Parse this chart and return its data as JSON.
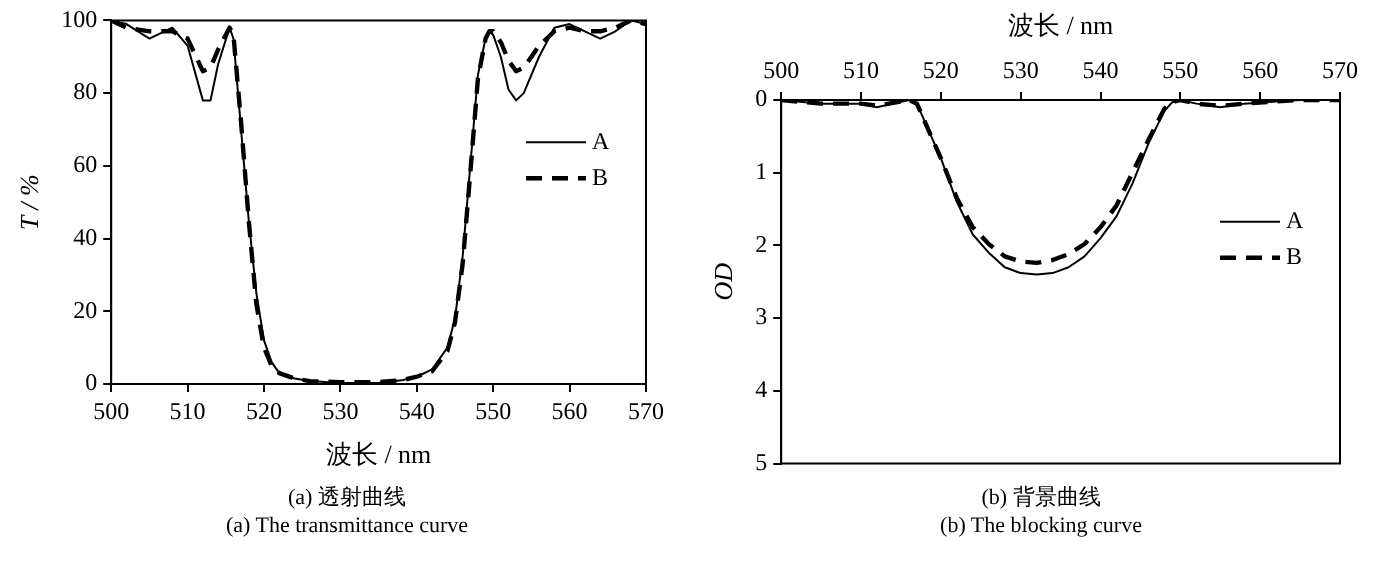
{
  "chart_data": [
    {
      "type": "line",
      "xlabel": "波长 / nm",
      "ylabel": "T / %",
      "xlim": [
        500,
        570
      ],
      "xticks": [
        500,
        510,
        520,
        530,
        540,
        550,
        560,
        570
      ],
      "ylim": [
        0,
        100
      ],
      "yticks": [
        0,
        20,
        40,
        60,
        80,
        100
      ],
      "grid": false,
      "legend": "right",
      "marker": "none",
      "annotations": [
        "(a)  透射曲线",
        "(a) The transmittance curve"
      ],
      "x": [
        500,
        502,
        505,
        508,
        510,
        512,
        513,
        514,
        515.5,
        516,
        517,
        518,
        519,
        520,
        521,
        522,
        524,
        526,
        530,
        535,
        538,
        540,
        542,
        544,
        545,
        546,
        547,
        548,
        549,
        549.5,
        550,
        551,
        552,
        553,
        554,
        556,
        558,
        560,
        562,
        564,
        566,
        568,
        570
      ],
      "series": [
        {
          "name": "A",
          "color": "#000000",
          "line_style": "solid",
          "values": [
            100,
            99,
            95,
            98,
            93,
            78,
            78,
            88,
            98,
            95,
            70,
            45,
            25,
            12,
            6,
            3,
            1.5,
            0.8,
            0.3,
            0.3,
            1,
            2,
            4,
            10,
            18,
            35,
            60,
            85,
            95,
            97,
            96,
            90,
            81,
            78,
            80,
            90,
            98,
            99,
            97,
            95,
            97,
            100,
            99
          ]
        },
        {
          "name": "B",
          "color": "#000000",
          "line_style": "dashed",
          "values": [
            100,
            98,
            97,
            97,
            95,
            86,
            87,
            92,
            98,
            96,
            72,
            45,
            22,
            10,
            5,
            3,
            1.5,
            0.8,
            0.5,
            0.5,
            1,
            2,
            3.5,
            9,
            17,
            33,
            58,
            84,
            95,
            97,
            97,
            94,
            89,
            86,
            87,
            93,
            97,
            98,
            97,
            97,
            98,
            100,
            99
          ]
        }
      ]
    },
    {
      "type": "line",
      "xlabel": "波长 / nm",
      "ylabel": "OD",
      "xlim": [
        500,
        570
      ],
      "xticks": [
        500,
        510,
        520,
        530,
        540,
        550,
        560,
        570
      ],
      "ylim": [
        5,
        0
      ],
      "yticks": [
        0,
        1,
        2,
        3,
        4,
        5
      ],
      "grid": false,
      "legend": "right",
      "marker": "none",
      "annotations": [
        "(b)  背景曲线",
        "(b) The blocking curve"
      ],
      "x": [
        500,
        505,
        510,
        512,
        514,
        516,
        517,
        518,
        520,
        522,
        524,
        526,
        528,
        530,
        532,
        534,
        536,
        538,
        540,
        542,
        544,
        546,
        548,
        549,
        550,
        552,
        555,
        558,
        562,
        565,
        570
      ],
      "series": [
        {
          "name": "A",
          "color": "#000000",
          "line_style": "solid",
          "values": [
            0,
            0.05,
            0.05,
            0.1,
            0.05,
            0,
            0.05,
            0.3,
            0.8,
            1.4,
            1.85,
            2.1,
            2.3,
            2.38,
            2.4,
            2.38,
            2.3,
            2.15,
            1.9,
            1.6,
            1.15,
            0.6,
            0.15,
            0.03,
            0,
            0.05,
            0.1,
            0.05,
            0.02,
            0,
            0
          ]
        },
        {
          "name": "B",
          "color": "#000000",
          "line_style": "dashed",
          "values": [
            0,
            0.05,
            0.05,
            0.08,
            0.04,
            0,
            0.05,
            0.3,
            0.8,
            1.35,
            1.75,
            1.98,
            2.15,
            2.22,
            2.24,
            2.2,
            2.12,
            1.98,
            1.75,
            1.45,
            1,
            0.55,
            0.12,
            0.03,
            0,
            0.05,
            0.08,
            0.05,
            0.02,
            0,
            0
          ]
        }
      ]
    }
  ]
}
